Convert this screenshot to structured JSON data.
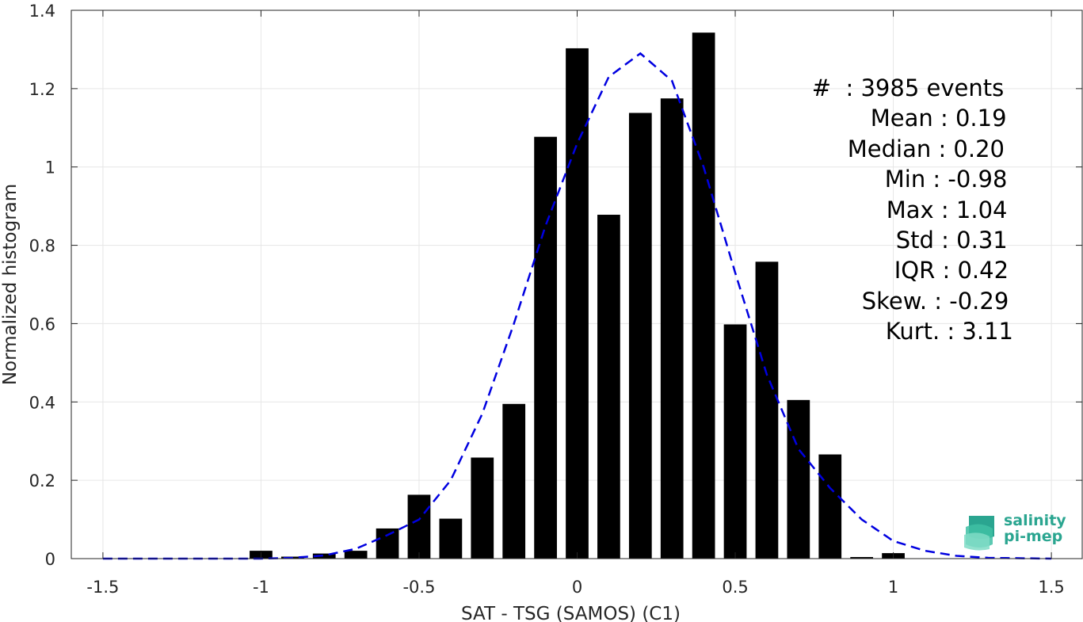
{
  "chart_data": {
    "type": "bar",
    "xlabel": "SAT - TSG (SAMOS) (C1)",
    "ylabel": "Normalized histogram",
    "xlim": [
      -1.6,
      1.6
    ],
    "ylim": [
      0,
      1.4
    ],
    "xticks": [
      -1.5,
      -1,
      -0.5,
      0,
      0.5,
      1,
      1.5
    ],
    "xtick_labels": [
      "-1.5",
      "-1",
      "-0.5",
      "0",
      "0.5",
      "1",
      "1.5"
    ],
    "yticks": [
      0,
      0.2,
      0.4,
      0.6,
      0.8,
      1,
      1.2,
      1.4
    ],
    "ytick_labels": [
      "0",
      "0.2",
      "0.4",
      "0.6",
      "0.8",
      "1",
      "1.2",
      "1.4"
    ],
    "grid": true,
    "bar_color": "#000000",
    "fit_color": "#0000e0",
    "bars": {
      "x": [
        -1.0,
        -0.9,
        -0.8,
        -0.7,
        -0.6,
        -0.5,
        -0.4,
        -0.3,
        -0.2,
        -0.1,
        0.0,
        0.1,
        0.2,
        0.3,
        0.4,
        0.5,
        0.6,
        0.7,
        0.8,
        0.9,
        1.0
      ],
      "values": [
        0.02,
        0.005,
        0.013,
        0.02,
        0.077,
        0.163,
        0.102,
        0.258,
        0.395,
        1.077,
        1.303,
        0.878,
        1.138,
        1.175,
        1.343,
        0.598,
        0.758,
        0.405,
        0.266,
        0.004,
        0.014
      ]
    },
    "fit_curve": {
      "style": "dashed",
      "x": [
        -1.5,
        -1.4,
        -1.3,
        -1.2,
        -1.1,
        -1.0,
        -0.9,
        -0.8,
        -0.7,
        -0.6,
        -0.5,
        -0.4,
        -0.3,
        -0.2,
        -0.1,
        0.0,
        0.1,
        0.2,
        0.3,
        0.4,
        0.5,
        0.6,
        0.7,
        0.8,
        0.9,
        1.0,
        1.1,
        1.2,
        1.3,
        1.4,
        1.5
      ],
      "y": [
        0.0,
        0.0,
        0.0,
        0.0,
        0.0,
        0.0,
        0.002,
        0.008,
        0.025,
        0.06,
        0.1,
        0.2,
        0.37,
        0.6,
        0.85,
        1.06,
        1.23,
        1.29,
        1.22,
        1.0,
        0.73,
        0.47,
        0.28,
        0.18,
        0.1,
        0.045,
        0.02,
        0.007,
        0.002,
        0.001,
        0.0
      ]
    }
  },
  "stats": [
    "#  : 3985 events",
    "Mean : 0.19",
    "Median : 0.20",
    "Min : -0.98",
    "Max : 1.04",
    "Std : 0.31",
    "IQR : 0.42",
    "Skew. : -0.29",
    "Kurt. : 3.11"
  ],
  "logo": {
    "line1": "salinity",
    "line2": "pi-mep"
  }
}
